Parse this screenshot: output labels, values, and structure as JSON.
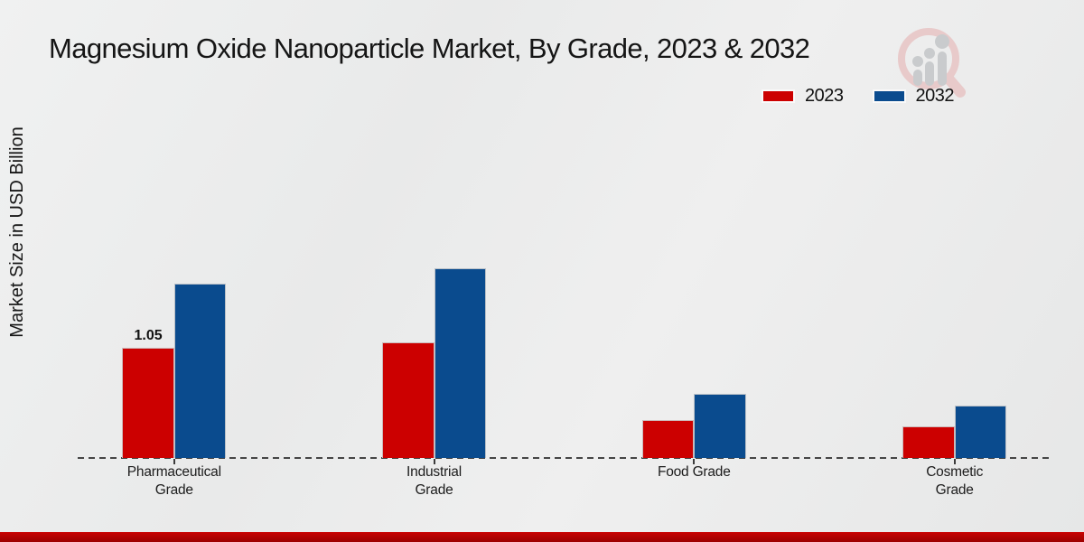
{
  "title": "Magnesium Oxide Nanoparticle Market, By Grade, 2023 & 2032",
  "ylabel": "Market Size in USD Billion",
  "watermark_icon": "magnifier-bar-chart-logo",
  "colors": {
    "series_2023": "#cc0000",
    "series_2032": "#0a4b8e",
    "footer_accent": "#b40000",
    "axis_dash": "#454545"
  },
  "legend": {
    "items": [
      {
        "label": "2023",
        "color": "#cc0000"
      },
      {
        "label": "2032",
        "color": "#0a4b8e"
      }
    ]
  },
  "chart_data": {
    "type": "bar",
    "title": "Magnesium Oxide Nanoparticle Market, By Grade, 2023 & 2032",
    "xlabel": "",
    "ylabel": "Market Size in USD Billion",
    "categories": [
      "Pharmaceutical Grade",
      "Industrial Grade",
      "Food Grade",
      "Cosmetic Grade"
    ],
    "category_display": [
      "Pharmaceutical\nGrade",
      "Industrial\nGrade",
      "Food Grade",
      "Cosmetic\nGrade"
    ],
    "series": [
      {
        "name": "2023",
        "color": "#cc0000",
        "values": [
          1.05,
          1.1,
          0.36,
          0.3
        ]
      },
      {
        "name": "2032",
        "color": "#0a4b8e",
        "values": [
          1.66,
          1.81,
          0.61,
          0.5
        ]
      }
    ],
    "bar_labels": [
      {
        "series_index": 0,
        "category_index": 0,
        "text": "1.05"
      }
    ],
    "ylim": [
      0,
      2.0
    ],
    "grid": false,
    "legend_position": "top-right",
    "axis_style": "dashed-baseline-only"
  }
}
